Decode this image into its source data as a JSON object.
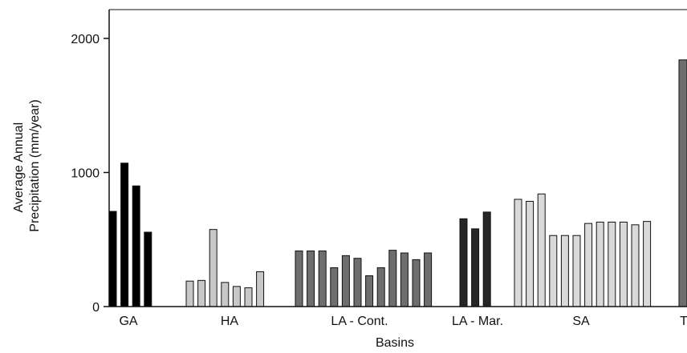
{
  "chart_data": {
    "type": "bar",
    "ylabel_lines": [
      "Average Annual",
      "Precipitation (mm/year)"
    ],
    "xlabel": "Basins",
    "ylim": [
      0,
      2200
    ],
    "yticks": [
      0,
      1000,
      2000
    ],
    "ytick_labels": [
      "0",
      "1000",
      "2000"
    ],
    "grid": false,
    "legend": "none",
    "groups": [
      {
        "name": "GA",
        "color": "#000000",
        "values": [
          710,
          1070,
          900,
          555
        ]
      },
      {
        "name": "HA",
        "color": "#c8c8c8",
        "values": [
          190,
          195,
          575,
          180,
          150,
          140,
          260
        ]
      },
      {
        "name": "LA - Cont.",
        "color": "#6e6e6e",
        "values": [
          415,
          415,
          415,
          290,
          380,
          360,
          230,
          290,
          420,
          400,
          350,
          400
        ]
      },
      {
        "name": "LA - Mar.",
        "color": "#262626",
        "values": [
          655,
          580,
          705
        ]
      },
      {
        "name": "SA",
        "color": "#d9d9d9",
        "values": [
          800,
          785,
          840,
          530,
          530,
          530,
          620,
          630,
          630,
          630,
          610,
          635
        ]
      },
      {
        "name": "T",
        "color": "#6e6e6e",
        "values": [
          1840
        ]
      }
    ]
  }
}
